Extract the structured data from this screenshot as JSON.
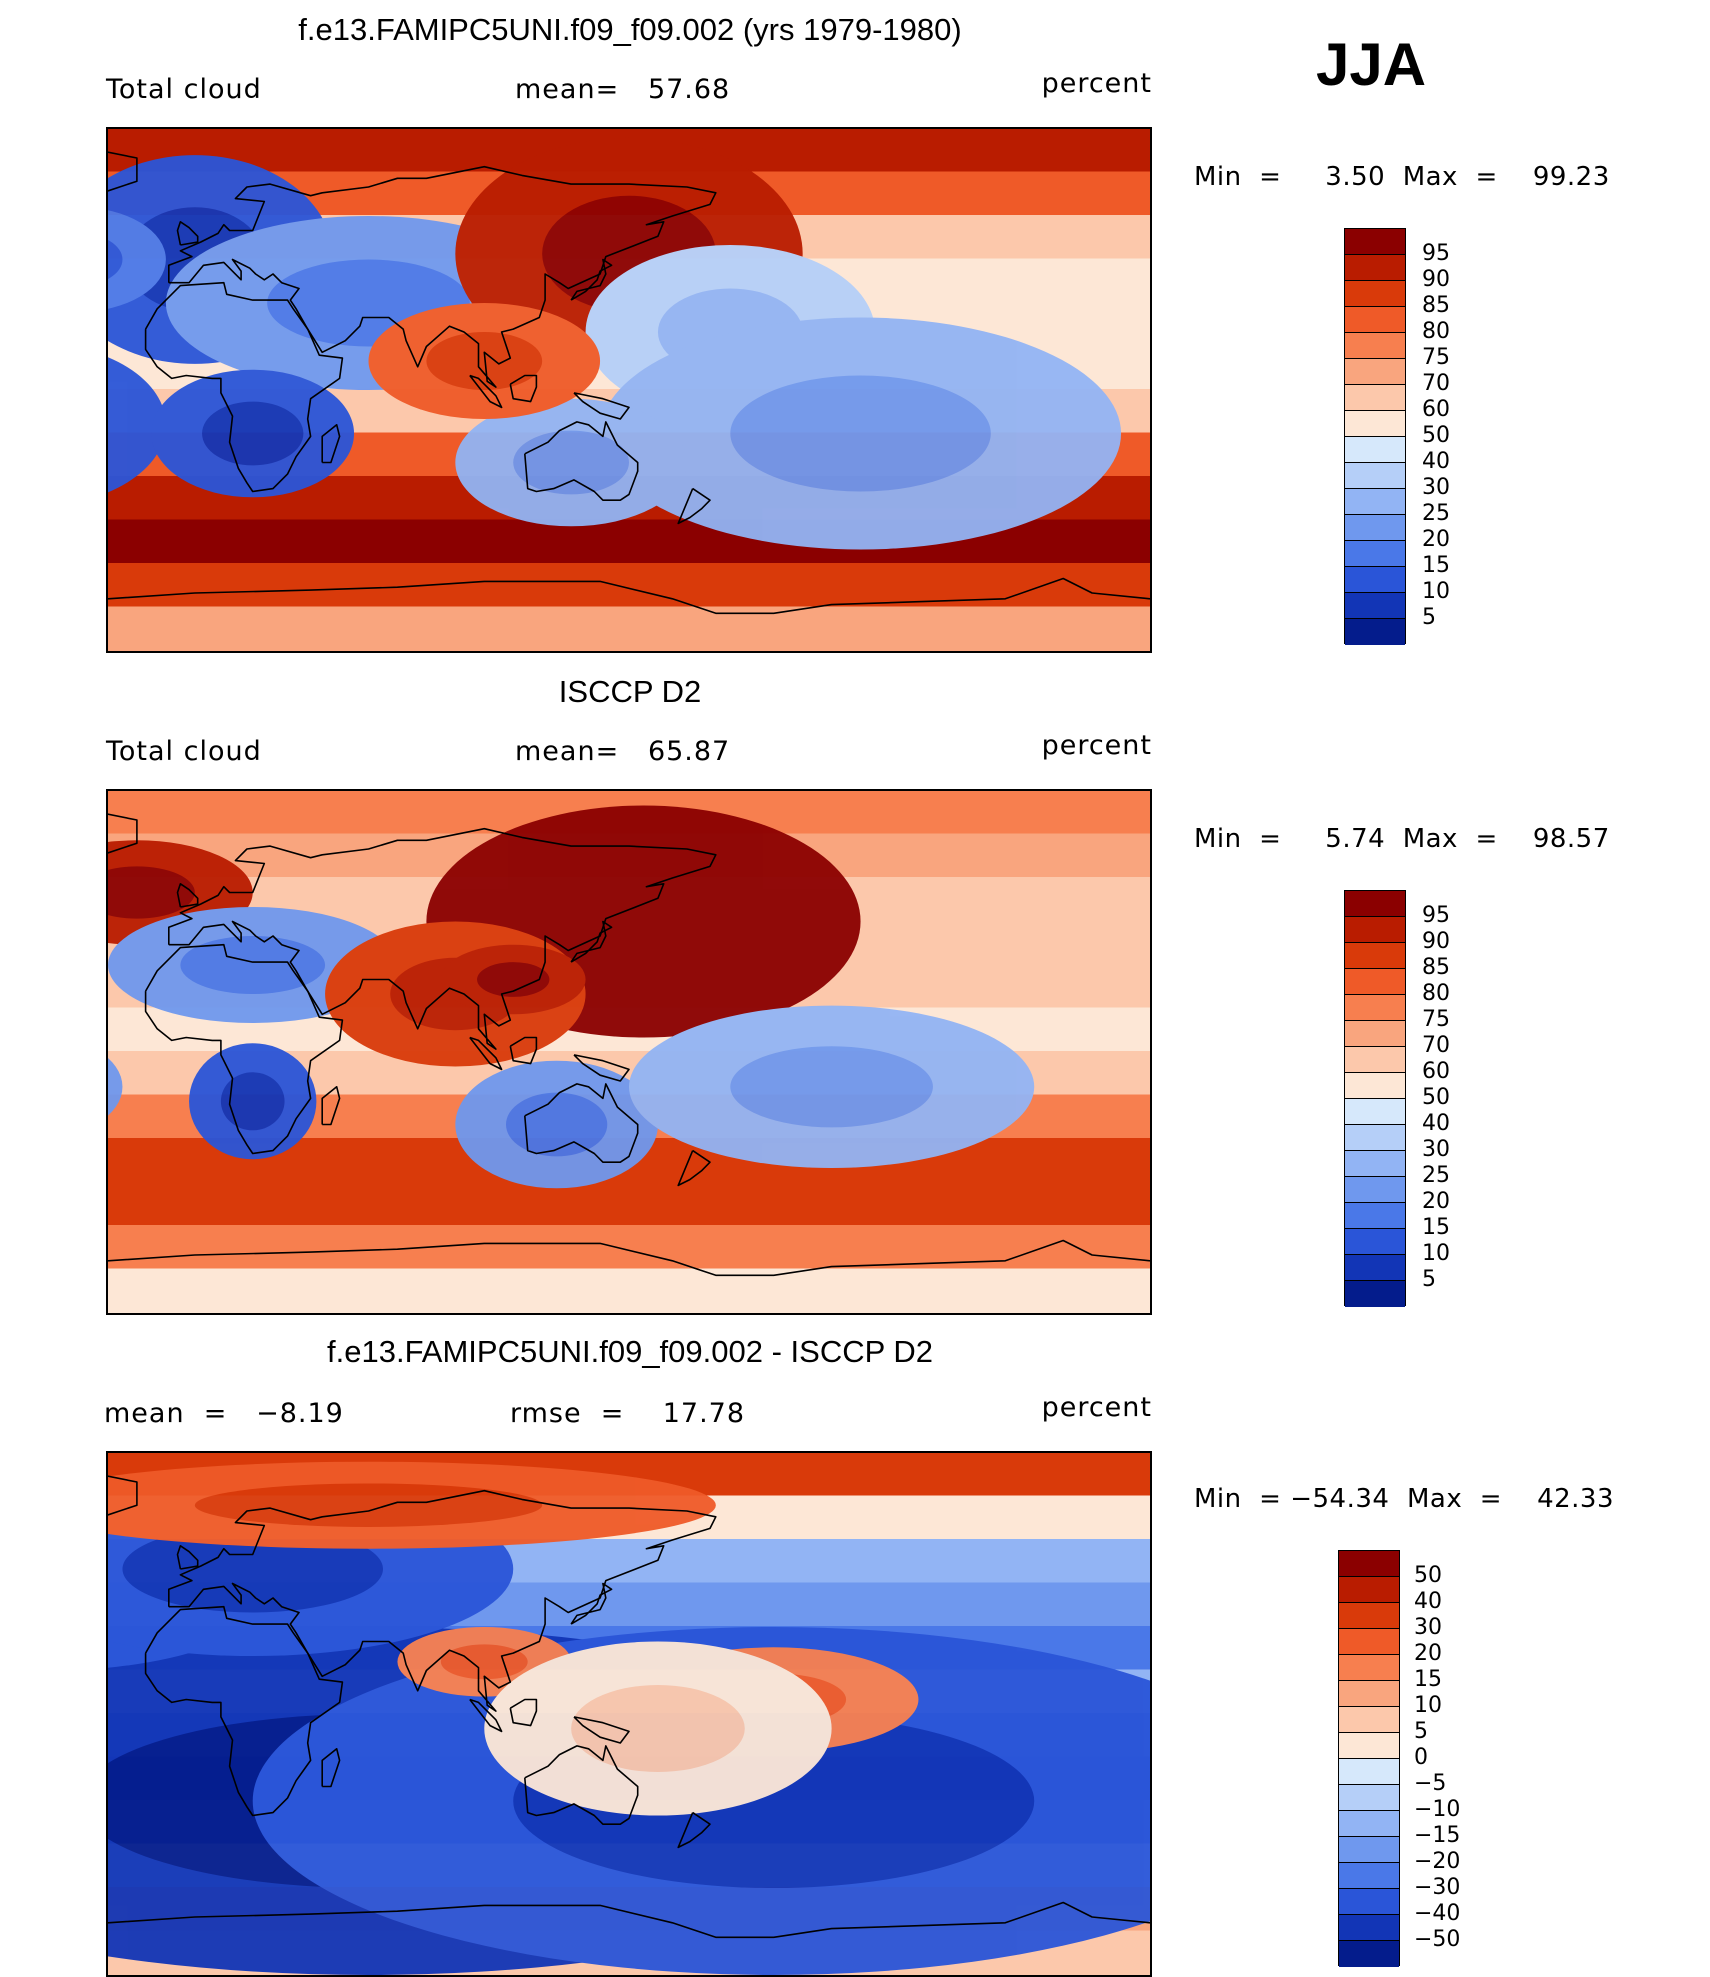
{
  "season": "JJA",
  "panels": [
    {
      "id": "model",
      "title": "f.e13.FAMIPC5UNI.f09_f09.002 (yrs 1979-1980)",
      "left_label": "Total cloud",
      "center_label": "mean=   57.68",
      "right_label": "percent",
      "range_text": "Min  =     3.50  Max  =    99.23",
      "colorbar": {
        "labels": [
          "95",
          "90",
          "85",
          "80",
          "75",
          "70",
          "60",
          "50",
          "40",
          "30",
          "25",
          "20",
          "15",
          "10",
          "5"
        ],
        "colors": [
          "#8b0000",
          "#b91c00",
          "#d93a0a",
          "#ef5a28",
          "#f77f4f",
          "#f9a57e",
          "#fcc8ab",
          "#fde7d6",
          "#d6e8fb",
          "#b5cff8",
          "#92b4f4",
          "#6f98ee",
          "#4a78e8",
          "#2a55d8",
          "#1235b6",
          "#041c8c"
        ]
      }
    },
    {
      "id": "obs",
      "title": "ISCCP D2",
      "left_label": "Total cloud",
      "center_label": "mean=   65.87",
      "right_label": "percent",
      "range_text": "Min  =     5.74  Max  =    98.57",
      "colorbar": {
        "labels": [
          "95",
          "90",
          "85",
          "80",
          "75",
          "70",
          "60",
          "50",
          "40",
          "30",
          "25",
          "20",
          "15",
          "10",
          "5"
        ],
        "colors": [
          "#8b0000",
          "#b91c00",
          "#d93a0a",
          "#ef5a28",
          "#f77f4f",
          "#f9a57e",
          "#fcc8ab",
          "#fde7d6",
          "#d6e8fb",
          "#b5cff8",
          "#92b4f4",
          "#6f98ee",
          "#4a78e8",
          "#2a55d8",
          "#1235b6",
          "#041c8c"
        ]
      }
    },
    {
      "id": "diff",
      "title": "f.e13.FAMIPC5UNI.f09_f09.002 - ISCCP D2",
      "left_label": "mean  =   −8.19",
      "center_label": "rmse  =    17.78",
      "right_label": "percent",
      "range_text": "Min  = −54.34  Max  =    42.33",
      "colorbar": {
        "labels": [
          "50",
          "40",
          "30",
          "20",
          "15",
          "10",
          "5",
          "0",
          "−5",
          "−10",
          "−15",
          "−20",
          "−30",
          "−40",
          "−50"
        ],
        "colors": [
          "#8b0000",
          "#b91c00",
          "#d93a0a",
          "#ef5a28",
          "#f77f4f",
          "#f9a57e",
          "#fcc8ab",
          "#fde7d6",
          "#d6e8fb",
          "#b5cff8",
          "#92b4f4",
          "#6f98ee",
          "#4a78e8",
          "#2a55d8",
          "#1235b6",
          "#041c8c"
        ]
      }
    }
  ]
}
